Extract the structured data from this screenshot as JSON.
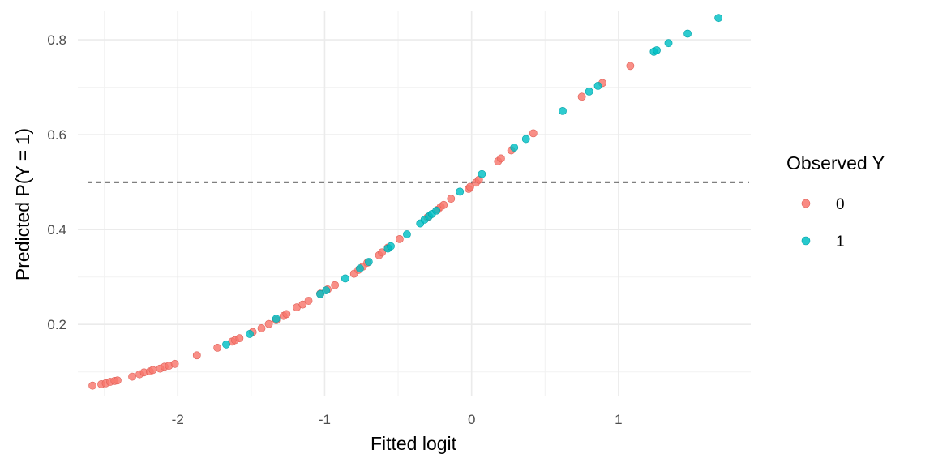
{
  "chart_data": {
    "type": "scatter",
    "title": "",
    "xlabel": "Fitted logit",
    "ylabel": "Predicted P(Y = 1)",
    "xlim": [
      -2.68,
      1.9
    ],
    "ylim": [
      0.05,
      0.86
    ],
    "x_ticks": [
      -2,
      -1,
      0,
      1
    ],
    "x_tick_labels": [
      "-2",
      "-1",
      "0",
      "1"
    ],
    "y_ticks": [
      0.2,
      0.4,
      0.6,
      0.8
    ],
    "y_tick_labels": [
      "0.2",
      "0.4",
      "0.6",
      "0.8"
    ],
    "grid": true,
    "reference_line": {
      "y": 0.5,
      "style": "dashed"
    },
    "legend": {
      "title": "Observed Y",
      "position": "right",
      "entries": [
        {
          "label": "0",
          "color": "#F8766D"
        },
        {
          "label": "1",
          "color": "#00BFC4"
        }
      ]
    },
    "series": [
      {
        "name": "0",
        "color": "#F8766D",
        "x": [
          -2.58,
          -2.52,
          -2.49,
          -2.46,
          -2.43,
          -2.41,
          -2.31,
          -2.26,
          -2.23,
          -2.19,
          -2.17,
          -2.12,
          -2.09,
          -2.06,
          -2.02,
          -1.87,
          -1.73,
          -1.63,
          -1.61,
          -1.58,
          -1.49,
          -1.43,
          -1.38,
          -1.33,
          -1.28,
          -1.26,
          -1.19,
          -1.15,
          -1.11,
          -1.03,
          -0.98,
          -0.93,
          -0.8,
          -0.77,
          -0.74,
          -0.71,
          -0.63,
          -0.61,
          -0.57,
          -0.49,
          -0.3,
          -0.23,
          -0.21,
          -0.19,
          -0.14,
          -0.02,
          -0.01,
          0.03,
          0.05,
          0.18,
          0.2,
          0.27,
          0.42,
          0.75,
          0.89,
          1.08
        ],
        "y": [
          0.071,
          0.074,
          0.076,
          0.079,
          0.081,
          0.082,
          0.09,
          0.095,
          0.099,
          0.101,
          0.104,
          0.107,
          0.111,
          0.113,
          0.117,
          0.135,
          0.151,
          0.164,
          0.167,
          0.171,
          0.184,
          0.192,
          0.201,
          0.209,
          0.218,
          0.222,
          0.236,
          0.242,
          0.25,
          0.265,
          0.274,
          0.283,
          0.307,
          0.315,
          0.322,
          0.33,
          0.346,
          0.352,
          0.362,
          0.38,
          0.426,
          0.442,
          0.448,
          0.452,
          0.465,
          0.486,
          0.49,
          0.499,
          0.505,
          0.544,
          0.55,
          0.567,
          0.603,
          0.68,
          0.709,
          0.745
        ]
      },
      {
        "name": "1",
        "color": "#00BFC4",
        "x": [
          -1.67,
          -1.51,
          -1.33,
          -1.03,
          -0.99,
          -0.86,
          -0.76,
          -0.7,
          -0.57,
          -0.55,
          -0.44,
          -0.35,
          -0.32,
          -0.29,
          -0.27,
          -0.24,
          -0.08,
          0.07,
          0.29,
          0.37,
          0.62,
          0.8,
          0.86,
          1.24,
          1.26,
          1.34,
          1.47,
          1.68
        ],
        "y": [
          0.158,
          0.18,
          0.212,
          0.264,
          0.272,
          0.297,
          0.318,
          0.332,
          0.36,
          0.365,
          0.39,
          0.413,
          0.421,
          0.428,
          0.433,
          0.44,
          0.48,
          0.517,
          0.573,
          0.591,
          0.65,
          0.691,
          0.703,
          0.775,
          0.778,
          0.793,
          0.813,
          0.846
        ]
      }
    ]
  }
}
